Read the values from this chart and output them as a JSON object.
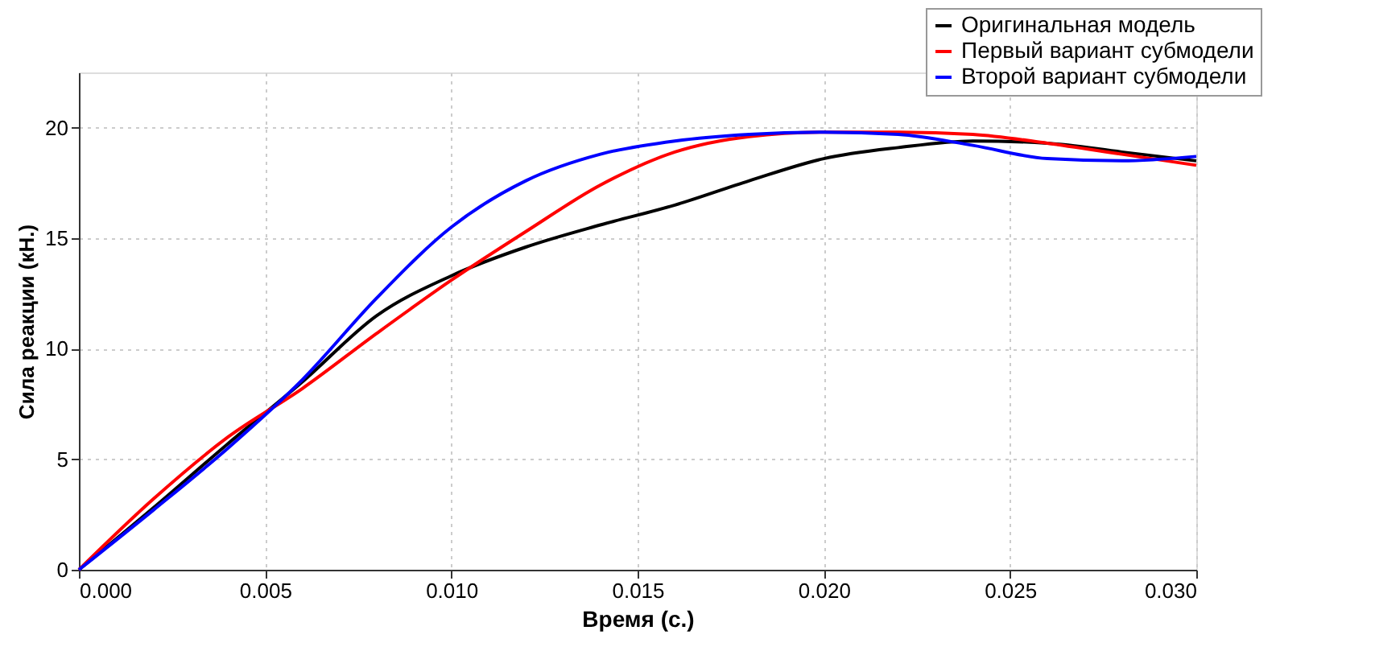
{
  "chart_data": {
    "type": "line",
    "xlabel": "Время (с.)",
    "ylabel": "Сила реакции (кН.)",
    "xlim": [
      0,
      0.03
    ],
    "xticks": [
      {
        "value": 0,
        "label": "0.000"
      },
      {
        "value": 0.005,
        "label": "0.005"
      },
      {
        "value": 0.01,
        "label": "0.010"
      },
      {
        "value": 0.015,
        "label": "0.015"
      },
      {
        "value": 0.02,
        "label": "0.020"
      },
      {
        "value": 0.025,
        "label": "0.025"
      },
      {
        "value": 0.03,
        "label": "0.030"
      }
    ],
    "ylim": [
      0,
      22.5
    ],
    "yticks": [
      0,
      5,
      10,
      15,
      20
    ],
    "grid": true,
    "legend": "top right",
    "line_style": "solid",
    "marker": "none",
    "x": [
      0,
      0.002,
      0.004,
      0.006,
      0.008,
      0.01,
      0.012,
      0.014,
      0.016,
      0.018,
      0.02,
      0.022,
      0.024,
      0.026,
      0.028,
      0.03
    ],
    "series": [
      {
        "name": "Оригинальная модель",
        "color": "#000000",
        "values": [
          0,
          2.8,
          5.7,
          8.5,
          11.5,
          13.3,
          14.6,
          15.6,
          16.5,
          17.6,
          18.6,
          19.1,
          19.4,
          19.3,
          18.9,
          18.5
        ]
      },
      {
        "name": "Первый вариант субмодели",
        "color": "#ff0000",
        "values": [
          0,
          3.2,
          6.0,
          8.2,
          10.7,
          13.1,
          15.3,
          17.4,
          18.9,
          19.6,
          19.8,
          19.8,
          19.7,
          19.3,
          18.8,
          18.3
        ]
      },
      {
        "name": "Второй вариант субмодели",
        "color": "#0000ff",
        "values": [
          0,
          2.7,
          5.5,
          8.6,
          12.3,
          15.5,
          17.6,
          18.8,
          19.4,
          19.7,
          19.8,
          19.7,
          19.2,
          18.6,
          18.5,
          18.7
        ]
      }
    ]
  }
}
